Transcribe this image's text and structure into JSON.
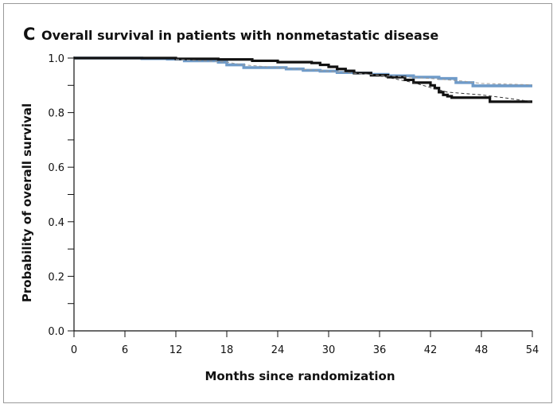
{
  "panel": {
    "letter": "C",
    "title": "Overall survival in patients with nonmetastatic disease"
  },
  "chart_data": {
    "type": "line",
    "title": "Overall survival in patients with nonmetastatic disease",
    "xlabel": "Months since randomization",
    "ylabel": "Probability of overall survival",
    "xlim": [
      0,
      54
    ],
    "ylim": [
      0,
      1.0
    ],
    "xticks": [
      0,
      6,
      12,
      18,
      24,
      30,
      36,
      42,
      48,
      54
    ],
    "yticks": [
      0.0,
      0.2,
      0.4,
      0.6,
      0.8,
      1.0
    ],
    "ytick_labels": [
      "0.0",
      "0.2",
      "0.4",
      "0.6",
      "0.8",
      "1.0"
    ],
    "y_minor_ticks": [
      0.1,
      0.3,
      0.5,
      0.7,
      0.9
    ],
    "grid": false,
    "legend": "none",
    "series": [
      {
        "color": "#6f9bc9",
        "style": "step",
        "points": [
          [
            0,
            1.0
          ],
          [
            8,
            0.998
          ],
          [
            11,
            0.996
          ],
          [
            13,
            0.99
          ],
          [
            17,
            0.985
          ],
          [
            18,
            0.975
          ],
          [
            20,
            0.965
          ],
          [
            23,
            0.965
          ],
          [
            25,
            0.96
          ],
          [
            27,
            0.955
          ],
          [
            29,
            0.952
          ],
          [
            31,
            0.947
          ],
          [
            33,
            0.945
          ],
          [
            35,
            0.94
          ],
          [
            37,
            0.935
          ],
          [
            40,
            0.93
          ],
          [
            43,
            0.925
          ],
          [
            45,
            0.91
          ],
          [
            47,
            0.898
          ],
          [
            54,
            0.898
          ]
        ]
      },
      {
        "color": "#111111",
        "style": "step",
        "points": [
          [
            0,
            1.0
          ],
          [
            12,
            0.997
          ],
          [
            17,
            0.995
          ],
          [
            21,
            0.99
          ],
          [
            23,
            0.99
          ],
          [
            24,
            0.985
          ],
          [
            28,
            0.982
          ],
          [
            29,
            0.975
          ],
          [
            30,
            0.968
          ],
          [
            31,
            0.96
          ],
          [
            32,
            0.953
          ],
          [
            33,
            0.945
          ],
          [
            35,
            0.937
          ],
          [
            37,
            0.93
          ],
          [
            39,
            0.92
          ],
          [
            40,
            0.91
          ],
          [
            42,
            0.9
          ],
          [
            42.5,
            0.89
          ],
          [
            43,
            0.875
          ],
          [
            43.5,
            0.865
          ],
          [
            44,
            0.86
          ],
          [
            44.5,
            0.855
          ],
          [
            49,
            0.84
          ],
          [
            54,
            0.84
          ]
        ]
      },
      {
        "color": "#9a9a9a",
        "style": "dashed",
        "points": [
          [
            12,
            0.995
          ],
          [
            18,
            0.985
          ],
          [
            20,
            0.975
          ],
          [
            24,
            0.965
          ],
          [
            30,
            0.952
          ],
          [
            36,
            0.937
          ],
          [
            42,
            0.925
          ],
          [
            46,
            0.915
          ],
          [
            48,
            0.907
          ],
          [
            54,
            0.902
          ]
        ]
      },
      {
        "color": "#333333",
        "style": "dashed",
        "points": [
          [
            36,
            0.935
          ],
          [
            40,
            0.91
          ],
          [
            42,
            0.892
          ],
          [
            44,
            0.875
          ],
          [
            48,
            0.865
          ],
          [
            51,
            0.853
          ],
          [
            54,
            0.84
          ]
        ]
      }
    ]
  }
}
